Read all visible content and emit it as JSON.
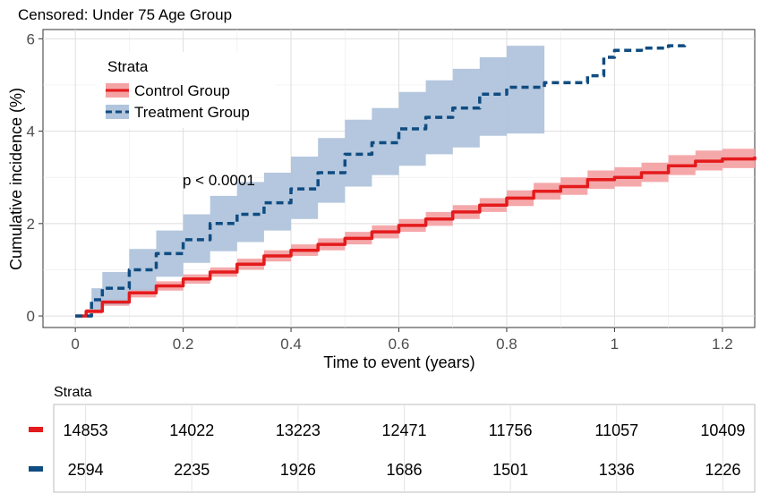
{
  "chart_data": {
    "type": "line",
    "title": "Censored: Under 75 Age Group",
    "xlabel": "Time to event (years)",
    "ylabel": "Cumulative incidence (%)",
    "xlim": [
      -0.06,
      1.26
    ],
    "ylim": [
      -0.25,
      6.2
    ],
    "x_ticks": [
      0,
      0.2,
      0.4,
      0.6,
      0.8,
      1,
      1.2
    ],
    "x_tick_labels": [
      "0",
      "0.2",
      "0.4",
      "0.6",
      "0.8",
      "1",
      "1.2"
    ],
    "y_ticks": [
      0,
      2,
      4,
      6
    ],
    "y_tick_labels": [
      "0",
      "2",
      "4",
      "6"
    ],
    "grid": true,
    "annotation": "p < 0.0001",
    "legend": {
      "title": "Strata",
      "placement": "top-left",
      "entries": [
        "Control Group",
        "Treatment Group"
      ]
    },
    "series": [
      {
        "name": "Control Group",
        "color": "#e41a1c",
        "band_color": "#f4a3a5",
        "line_style": "solid",
        "x": [
          0,
          0.02,
          0.05,
          0.1,
          0.15,
          0.2,
          0.25,
          0.3,
          0.35,
          0.4,
          0.45,
          0.5,
          0.55,
          0.6,
          0.65,
          0.7,
          0.75,
          0.8,
          0.85,
          0.9,
          0.95,
          1.0,
          1.05,
          1.1,
          1.15,
          1.2,
          1.26
        ],
        "y": [
          0,
          0.1,
          0.3,
          0.5,
          0.65,
          0.8,
          0.95,
          1.12,
          1.3,
          1.42,
          1.55,
          1.68,
          1.82,
          1.96,
          2.1,
          2.25,
          2.4,
          2.55,
          2.7,
          2.8,
          2.95,
          3.0,
          3.1,
          3.25,
          3.35,
          3.4,
          3.45
        ],
        "lower": [
          0,
          0.05,
          0.22,
          0.4,
          0.55,
          0.7,
          0.85,
          1.0,
          1.18,
          1.3,
          1.42,
          1.55,
          1.68,
          1.82,
          1.95,
          2.1,
          2.25,
          2.38,
          2.52,
          2.62,
          2.75,
          2.8,
          2.9,
          3.05,
          3.15,
          3.2,
          3.25
        ],
        "upper": [
          0,
          0.15,
          0.38,
          0.6,
          0.75,
          0.9,
          1.05,
          1.24,
          1.42,
          1.55,
          1.68,
          1.82,
          1.96,
          2.1,
          2.25,
          2.4,
          2.55,
          2.72,
          2.88,
          3.0,
          3.15,
          3.22,
          3.32,
          3.48,
          3.58,
          3.62,
          3.66
        ]
      },
      {
        "name": "Treatment Group",
        "color": "#0f4c81",
        "band_color": "#b0c4dc",
        "line_style": "dashed",
        "x": [
          0,
          0.03,
          0.05,
          0.1,
          0.15,
          0.2,
          0.25,
          0.3,
          0.35,
          0.4,
          0.45,
          0.5,
          0.55,
          0.6,
          0.65,
          0.7,
          0.75,
          0.8,
          0.87,
          0.95,
          0.98,
          1.0,
          1.05,
          1.1,
          1.13
        ],
        "y": [
          0,
          0.35,
          0.6,
          1.0,
          1.35,
          1.65,
          2.0,
          2.2,
          2.45,
          2.75,
          3.1,
          3.5,
          3.75,
          4.05,
          4.3,
          4.5,
          4.8,
          4.95,
          5.05,
          5.2,
          5.6,
          5.75,
          5.8,
          5.85,
          5.95
        ],
        "lower": [
          0,
          0.1,
          0.25,
          0.55,
          0.85,
          1.15,
          1.4,
          1.6,
          1.85,
          2.1,
          2.45,
          2.8,
          3.05,
          3.25,
          3.5,
          3.65,
          3.9,
          3.95,
          4.05,
          null,
          null,
          null,
          null,
          null,
          null
        ],
        "upper": [
          0,
          0.6,
          0.95,
          1.45,
          1.85,
          2.2,
          2.6,
          2.9,
          3.1,
          3.45,
          3.85,
          4.25,
          4.5,
          4.85,
          5.1,
          5.35,
          5.6,
          5.85,
          5.95,
          null,
          null,
          null,
          null,
          null,
          null
        ]
      }
    ],
    "risk_table": {
      "title": "Strata",
      "rows": [
        {
          "name": "Control Group",
          "color": "#e41a1c",
          "counts": [
            "14853",
            "14022",
            "13223",
            "12471",
            "11756",
            "11057",
            "10409"
          ]
        },
        {
          "name": "Treatment Group",
          "color": "#0f4c81",
          "counts": [
            "2594",
            "2235",
            "1926",
            "1686",
            "1501",
            "1336",
            "1226"
          ]
        }
      ]
    }
  }
}
